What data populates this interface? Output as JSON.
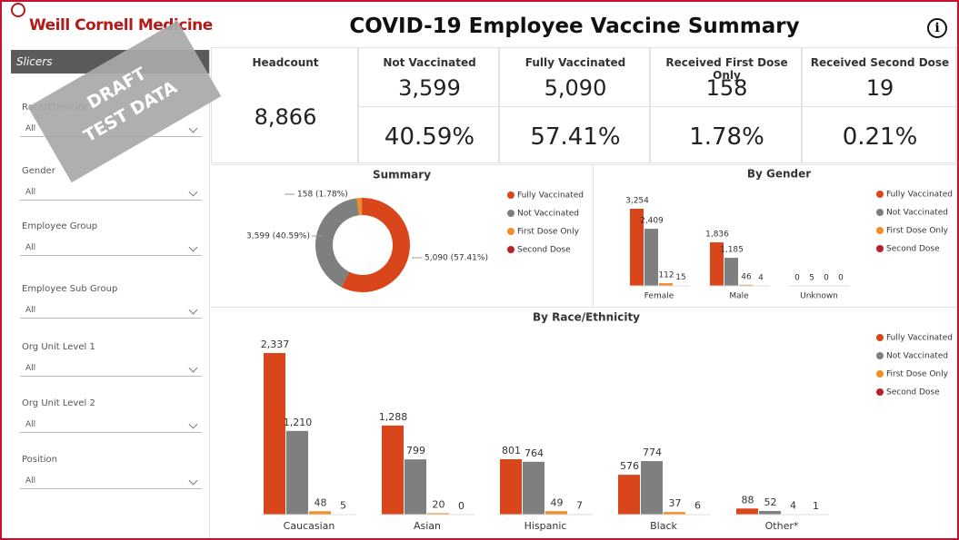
{
  "header": {
    "logo": "Weill Cornell Medicine",
    "title": "COVID-19 Employee Vaccine Summary"
  },
  "watermark": [
    "DRAFT",
    "TEST DATA"
  ],
  "slicers": {
    "heading": "Slicers",
    "items": [
      {
        "label": "Race/Ethnicity",
        "value": "All"
      },
      {
        "label": "Gender",
        "value": "All"
      },
      {
        "label": "Employee Group",
        "value": "All"
      },
      {
        "label": "Employee Sub Group",
        "value": "All"
      },
      {
        "label": "Org Unit Level 1",
        "value": "All"
      },
      {
        "label": "Org Unit Level 2",
        "value": "All"
      },
      {
        "label": "Position",
        "value": "All"
      }
    ]
  },
  "kpis": {
    "headcount": {
      "label": "Headcount",
      "value": "8,866"
    },
    "cards": [
      {
        "label": "Not Vaccinated",
        "count": "3,599",
        "percent": "40.59%"
      },
      {
        "label": "Fully Vaccinated",
        "count": "5,090",
        "percent": "57.41%"
      },
      {
        "label": "Received First Dose Only",
        "count": "158",
        "percent": "1.78%"
      },
      {
        "label": "Received Second Dose",
        "count": "19",
        "percent": "0.21%"
      }
    ]
  },
  "chart_data": [
    {
      "type": "pie",
      "title": "Summary",
      "donut": true,
      "categories": [
        "Fully Vaccinated",
        "Not Vaccinated",
        "First Dose Only",
        "Second Dose"
      ],
      "values": [
        5090,
        3599,
        158,
        19
      ],
      "value_labels": [
        "5,090 (57.41%)",
        "3,599 (40.59%)",
        "158 (1.78%)",
        null
      ],
      "colors": [
        "#d9461b",
        "#7f7f7f",
        "#f28c28",
        "#b8202a"
      ]
    },
    {
      "type": "bar",
      "title": "By Gender",
      "categories": [
        "Female",
        "Male",
        "Unknown"
      ],
      "series": [
        {
          "name": "Fully Vaccinated",
          "color": "#d9461b",
          "values": [
            3254,
            1836,
            0
          ],
          "value_labels": [
            "3,254",
            "1,836",
            "0"
          ]
        },
        {
          "name": "Not Vaccinated",
          "color": "#7f7f7f",
          "values": [
            2409,
            1185,
            5
          ],
          "value_labels": [
            "2,409",
            "1,185",
            "5"
          ]
        },
        {
          "name": "First Dose Only",
          "color": "#f28c28",
          "values": [
            112,
            46,
            0
          ]
        },
        {
          "name": "Second Dose",
          "color": "#b8202a",
          "values": [
            15,
            4,
            0
          ]
        }
      ]
    },
    {
      "type": "bar",
      "title": "By Race/Ethnicity",
      "categories": [
        "Caucasian",
        "Asian",
        "Hispanic",
        "Black",
        "Other*"
      ],
      "series": [
        {
          "name": "Fully Vaccinated",
          "color": "#d9461b",
          "values": [
            2337,
            1288,
            801,
            576,
            88
          ],
          "value_labels": [
            "2,337",
            "1,288",
            "801",
            "576",
            "88"
          ]
        },
        {
          "name": "Not Vaccinated",
          "color": "#7f7f7f",
          "values": [
            1210,
            799,
            764,
            774,
            52
          ],
          "value_labels": [
            "1,210",
            "799",
            "764",
            "774",
            "52"
          ]
        },
        {
          "name": "First Dose Only",
          "color": "#f28c28",
          "values": [
            48,
            20,
            49,
            37,
            4
          ]
        },
        {
          "name": "Second Dose",
          "color": "#b8202a",
          "values": [
            5,
            0,
            7,
            6,
            1
          ]
        }
      ]
    }
  ]
}
